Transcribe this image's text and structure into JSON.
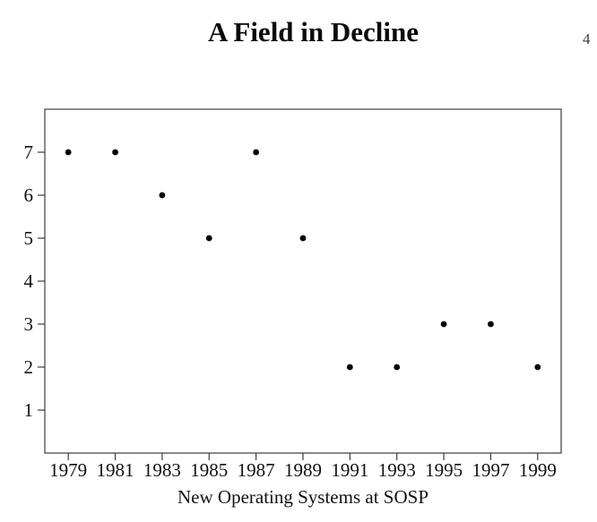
{
  "slide": {
    "title": "A Field in Decline",
    "page_number": "4"
  },
  "chart_data": {
    "type": "scatter",
    "title": "A Field in Decline",
    "xlabel": "New Operating Systems at SOSP",
    "ylabel": "",
    "x": [
      1979,
      1981,
      1983,
      1985,
      1987,
      1989,
      1991,
      1993,
      1995,
      1997,
      1999
    ],
    "y": [
      7,
      7,
      6,
      5,
      7,
      5,
      2,
      2,
      3,
      3,
      2
    ],
    "xlim": [
      1978,
      2000
    ],
    "ylim": [
      0,
      8
    ],
    "x_ticks": [
      1979,
      1981,
      1983,
      1985,
      1987,
      1989,
      1991,
      1993,
      1995,
      1997,
      1999
    ],
    "y_ticks": [
      1,
      2,
      3,
      4,
      5,
      6,
      7
    ],
    "grid": false,
    "legend": "none",
    "point_color": "#000000",
    "axis_color": "#3c3c3c",
    "label_color": "#111111"
  }
}
